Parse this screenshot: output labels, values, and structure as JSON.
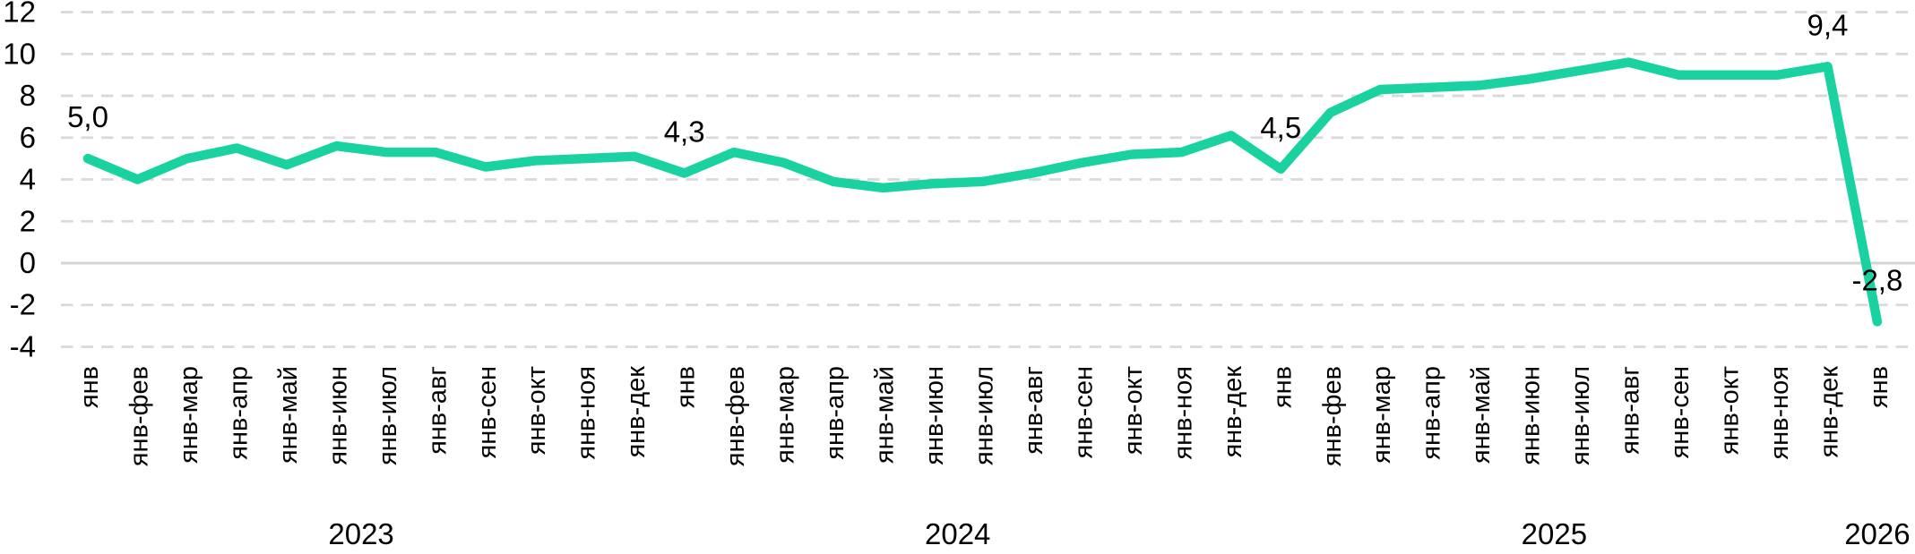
{
  "chart_data": {
    "type": "line",
    "title": "",
    "xlabel": "",
    "ylabel": "",
    "legend": "none",
    "categories": [
      "янв",
      "янв-фев",
      "янв-мар",
      "янв-апр",
      "янв-май",
      "янв-июн",
      "янв-июл",
      "янв-авг",
      "янв-сен",
      "янв-окт",
      "янв-ноя",
      "янв-дек",
      "янв",
      "янв-фев",
      "янв-мар",
      "янв-апр",
      "янв-май",
      "янв-июн",
      "янв-июл",
      "янв-авг",
      "янв-сен",
      "янв-окт",
      "янв-ноя",
      "янв-дек",
      "янв",
      "янв-фев",
      "янв-мар",
      "янв-апр",
      "янв-май",
      "янв-июн",
      "янв-июл",
      "янв-авг",
      "янв-сен",
      "янв-окт",
      "янв-ноя",
      "янв-дек",
      "янв"
    ],
    "values": [
      5.0,
      4.0,
      5.0,
      5.5,
      4.7,
      5.6,
      5.3,
      5.3,
      4.6,
      4.9,
      5.0,
      5.1,
      4.3,
      5.3,
      4.8,
      3.9,
      3.6,
      3.8,
      3.9,
      4.3,
      4.8,
      5.2,
      5.3,
      6.1,
      4.5,
      7.2,
      8.3,
      8.4,
      8.5,
      8.8,
      9.2,
      9.6,
      9.0,
      9.0,
      9.0,
      9.4,
      -2.8
    ],
    "year_groups": [
      {
        "label": "2023",
        "months": 12
      },
      {
        "label": "2024",
        "months": 12
      },
      {
        "label": "2025",
        "months": 12
      },
      {
        "label": "2026",
        "months": 1
      }
    ],
    "point_labels": [
      {
        "index": 0,
        "text": "5,0"
      },
      {
        "index": 12,
        "text": "4,3"
      },
      {
        "index": 24,
        "text": "4,5"
      },
      {
        "index": 35,
        "text": "9,4"
      },
      {
        "index": 36,
        "text": "-2,8"
      }
    ],
    "yticks": [
      12,
      10,
      8,
      6,
      4,
      2,
      0,
      -2,
      -4
    ],
    "ylim": [
      -4,
      12
    ],
    "decimal_separator": ",",
    "grid": {
      "horizontal": "dashed",
      "vertical": "none",
      "color": "#D9D9D9",
      "zero_line": true,
      "zero_line_color": "#D5D5D5"
    },
    "colors": {
      "line": "#19D29F",
      "text": "#000000",
      "background": "#FFFFFF"
    }
  }
}
